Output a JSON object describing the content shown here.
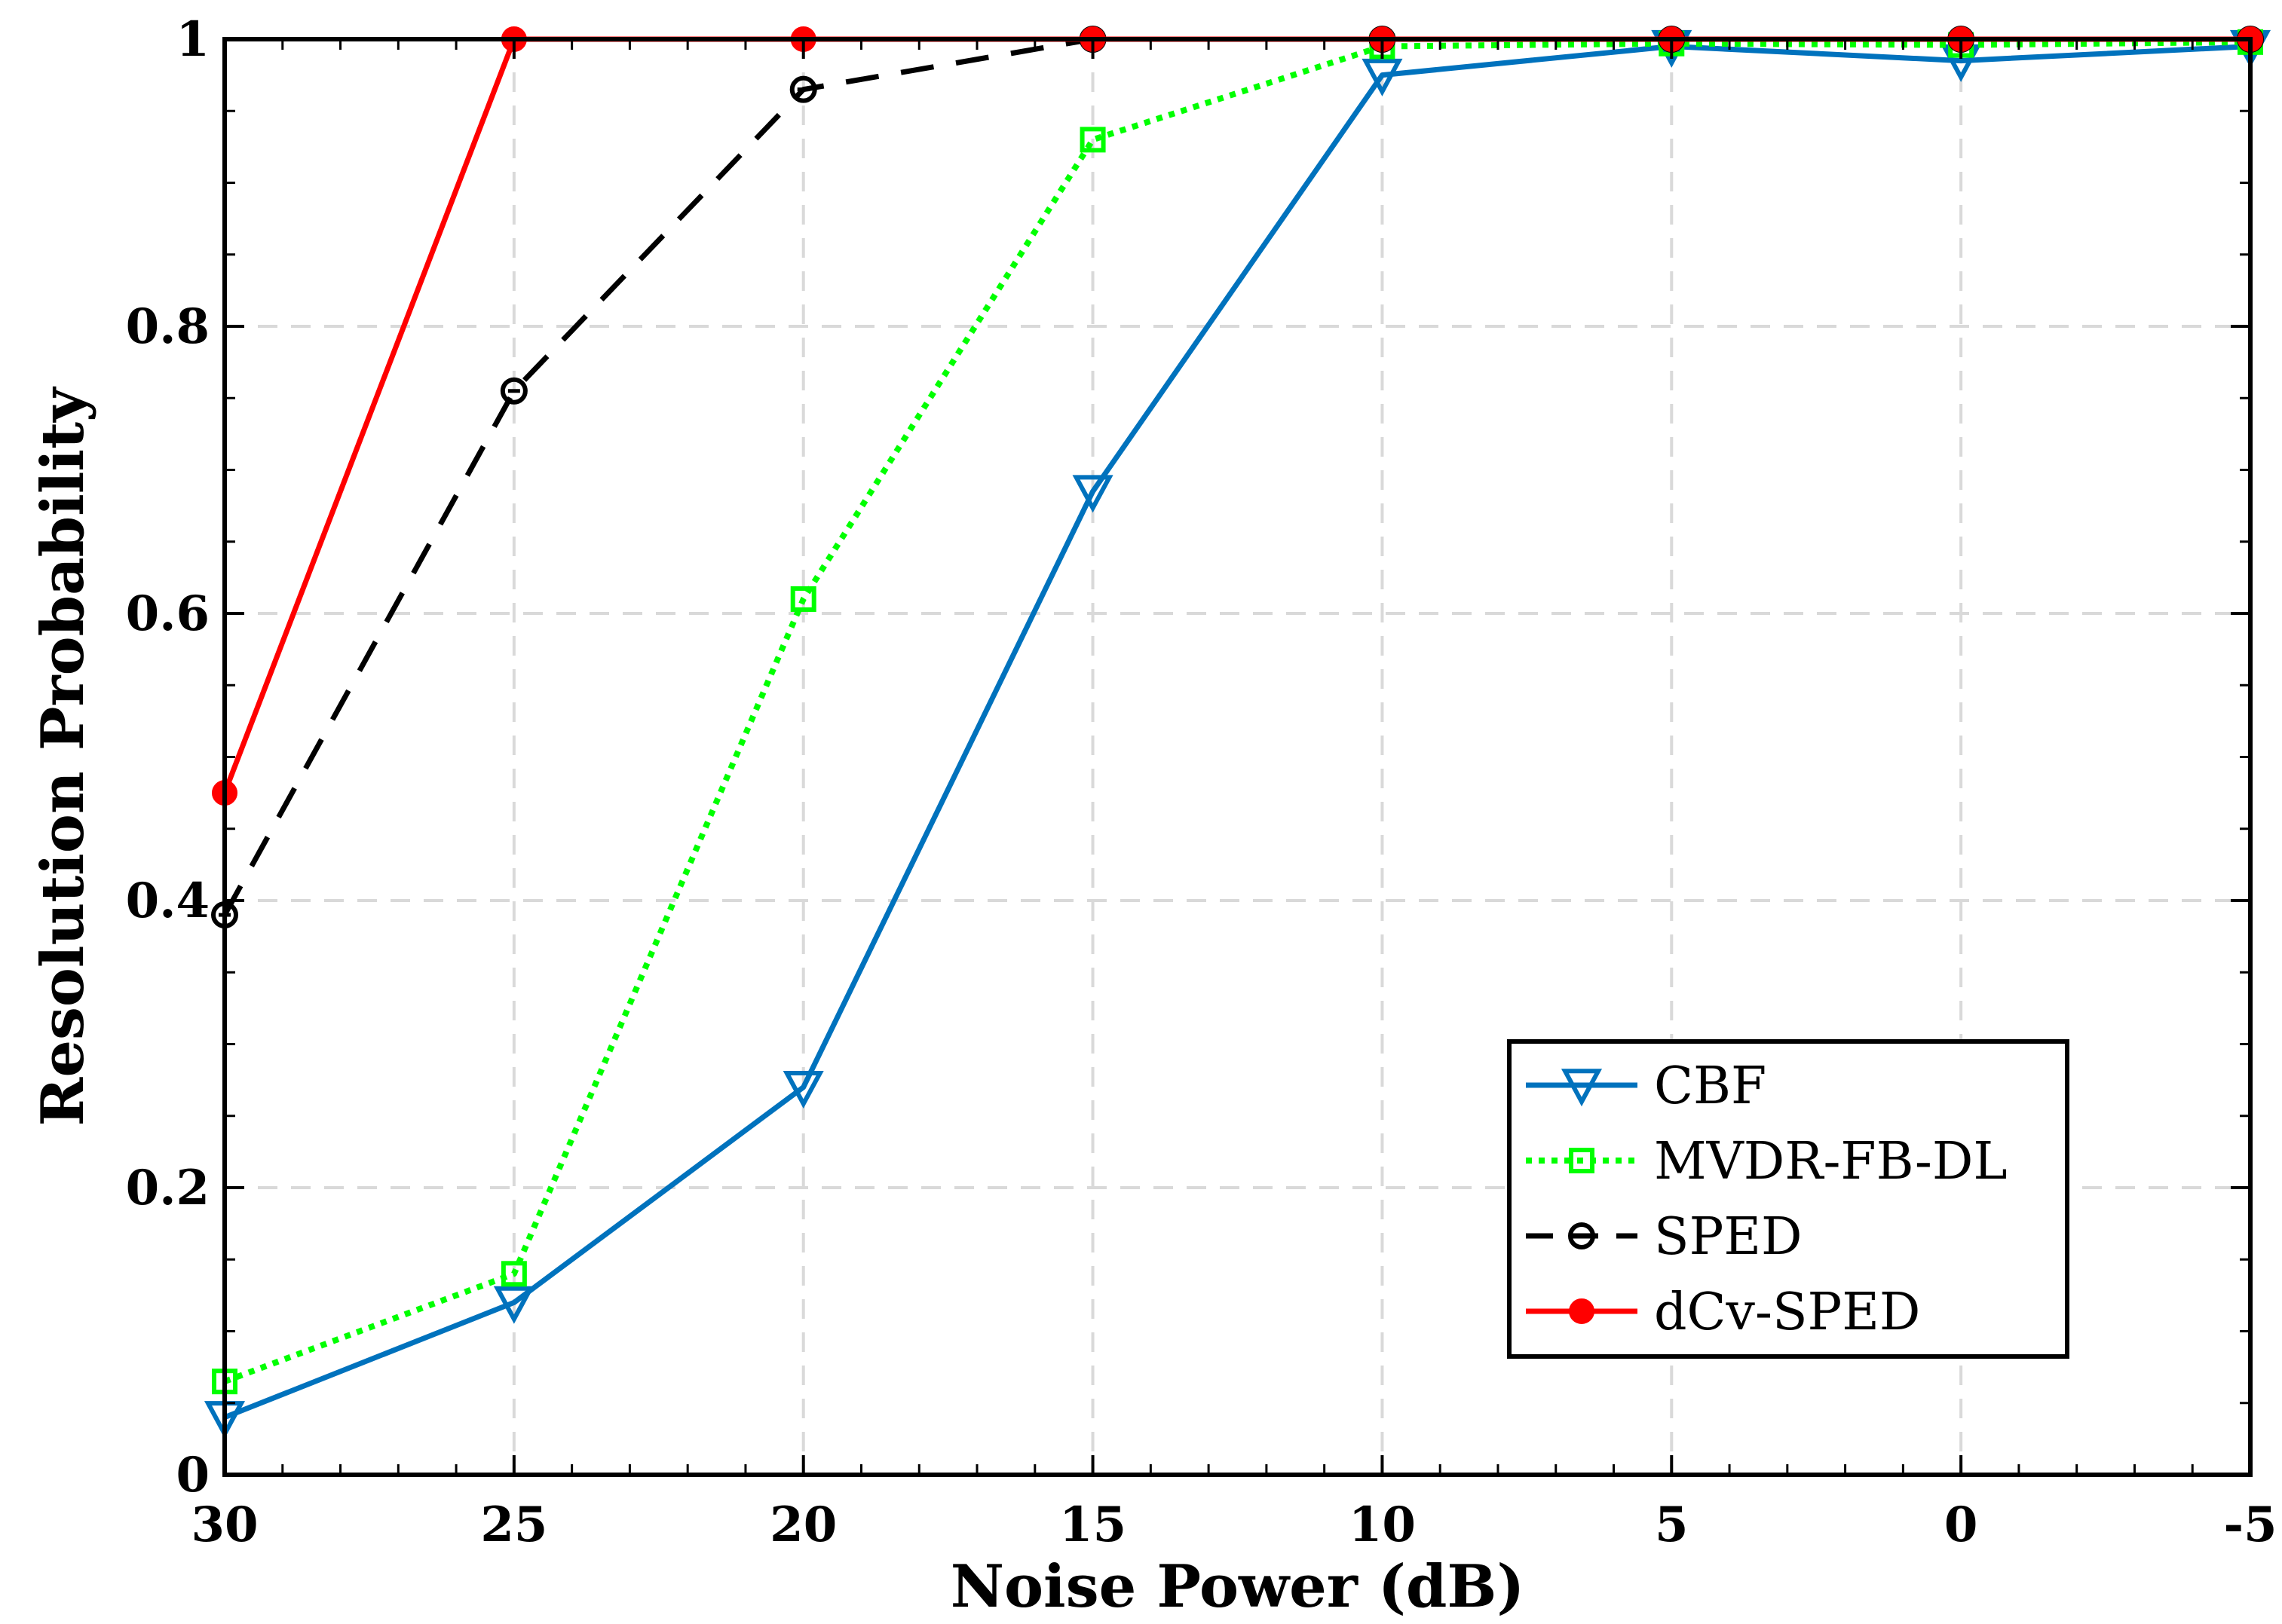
{
  "chart_data": {
    "type": "line",
    "title": "",
    "xlabel": "Noise Power (dB)",
    "ylabel": "Resolution Probability",
    "x": [
      30,
      25,
      20,
      15,
      10,
      5,
      0,
      -5
    ],
    "xlim": [
      30,
      -5
    ],
    "ylim": [
      0,
      1
    ],
    "x_ticks": [
      "30",
      "25",
      "20",
      "15",
      "10",
      "5",
      "0",
      "-5"
    ],
    "y_ticks": [
      "0",
      "0.2",
      "0.4",
      "0.6",
      "0.8",
      "1"
    ],
    "grid": true,
    "legend_position": "bottom-right",
    "series": [
      {
        "name": "CBF",
        "color": "#0072BD",
        "line_style": "solid",
        "marker": "triangle-down",
        "values": [
          0.04,
          0.12,
          0.27,
          0.685,
          0.975,
          0.995,
          0.985,
          0.995
        ]
      },
      {
        "name": "MVDR-FB-DL",
        "color": "#00FF00",
        "line_style": "dotted",
        "marker": "square",
        "values": [
          0.065,
          0.14,
          0.61,
          0.93,
          0.995,
          0.997,
          0.996,
          0.998
        ]
      },
      {
        "name": "SPED",
        "color": "#000000",
        "line_style": "dashed",
        "marker": "circle-open",
        "values": [
          0.39,
          0.755,
          0.965,
          1.0,
          1.0,
          1.0,
          1.0,
          1.0
        ]
      },
      {
        "name": "dCv-SPED",
        "color": "#FF0000",
        "line_style": "solid",
        "marker": "circle-filled",
        "values": [
          0.475,
          1.0,
          1.0,
          1.0,
          1.0,
          1.0,
          1.0,
          1.0
        ]
      }
    ]
  }
}
